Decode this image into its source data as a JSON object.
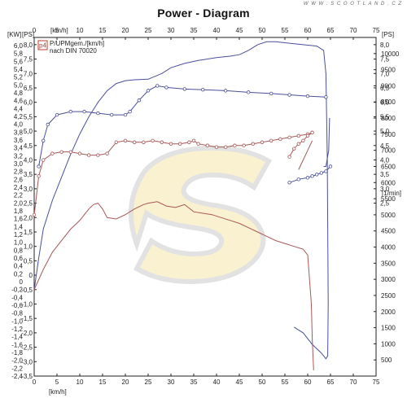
{
  "header": {
    "title": "Power - Diagram",
    "watermark": "W W W . S C O O T L A N D . C Z"
  },
  "chart_data": {
    "type": "line",
    "title": "Power - Diagram",
    "unit_labels": {
      "kw": "[KW]",
      "ps_left": "[PS]",
      "kmh_top": "[km/h]",
      "ps_right": "[PS]",
      "rpm_right": "[1/min]",
      "kmh_bottom": "[km/h]"
    },
    "legend": {
      "badge": "p4",
      "line1": "P/UPMgem./[km/h]",
      "line2": "nach DIN 70020"
    },
    "speed_ticks": [
      "0",
      "5",
      "10",
      "15",
      "20",
      "25",
      "30",
      "35",
      "40",
      "45",
      "50",
      "55",
      "60",
      "65",
      "70",
      "75"
    ],
    "kw_ticks": [
      "6,0",
      "5,8",
      "5,6",
      "5,4",
      "5,2",
      "5,0",
      "4,8",
      "4,6",
      "4,4",
      "4,2",
      "4,0",
      "3,8",
      "3,6",
      "3,4",
      "3,2",
      "3,0",
      "2,8",
      "2,6",
      "2,4",
      "2,2",
      "2,0",
      "1,8",
      "1,6",
      "1,4",
      "1,2",
      "1,0",
      "0,8",
      "0,6",
      "0,4",
      "0,2",
      "0",
      "-0,2",
      "-0,4",
      "-0,6",
      "-0,8",
      "-1,0",
      "-1,2",
      "-1,4",
      "-1,6",
      "-1,8",
      "-2,0",
      "-2,2",
      "-2,4"
    ],
    "ps_left_ticks": [
      "8,0",
      "7,5",
      "7,0",
      "6,5",
      "6,0",
      "5,5",
      "5,0",
      "4,5",
      "4,0",
      "3,5",
      "3,0",
      "2,5",
      "2,0",
      "1,5",
      "1,0",
      "0,5",
      "0",
      "-0,5",
      "-1,0",
      "-1,5",
      "-2,0",
      "-2,5",
      "-3,0",
      "-3,5"
    ],
    "ps_right_ticks": [
      "8,0",
      "7,5",
      "7,0",
      "6,5",
      "6,0",
      "5,5",
      "5,0",
      "4,5",
      "4,0",
      "3,5",
      "3,0",
      "2,5"
    ],
    "rpm_ticks": [
      "10000",
      "9500",
      "9000",
      "8500",
      "8000",
      "7500",
      "7000",
      "6500",
      "6000",
      "5500",
      "5000",
      "4500",
      "4000",
      "3500",
      "3000",
      "2500",
      "2000",
      "1500",
      "1000",
      "500"
    ],
    "x_range_kmh": [
      0,
      75
    ],
    "ps_range": [
      -3.5,
      8.25
    ],
    "rpm_range": [
      0,
      10500
    ],
    "grid": false,
    "series": [
      {
        "color": "#4a4f9a",
        "axis": "ps",
        "markers": false,
        "points": [
          [
            0,
            -0.5
          ],
          [
            1,
            0.6
          ],
          [
            2,
            1.6
          ],
          [
            4,
            2.6
          ],
          [
            6,
            3.4
          ],
          [
            8,
            4.2
          ],
          [
            10,
            4.9
          ],
          [
            12,
            5.5
          ],
          [
            14,
            6.0
          ],
          [
            16,
            6.4
          ],
          [
            18,
            6.65
          ],
          [
            20,
            6.75
          ],
          [
            22,
            6.78
          ],
          [
            25,
            6.8
          ],
          [
            28,
            7.0
          ],
          [
            30,
            7.2
          ],
          [
            33,
            7.35
          ],
          [
            36,
            7.45
          ],
          [
            40,
            7.55
          ],
          [
            43,
            7.6
          ],
          [
            45,
            7.65
          ],
          [
            47,
            7.8
          ],
          [
            49,
            8.0
          ],
          [
            51,
            8.1
          ],
          [
            53,
            8.1
          ],
          [
            56,
            8.05
          ],
          [
            59,
            8.0
          ],
          [
            62,
            7.95
          ],
          [
            63.5,
            7.8
          ],
          [
            64,
            7.0
          ],
          [
            64.3,
            4.0
          ],
          [
            64.5,
            -1.0
          ],
          [
            64.4,
            -2.8
          ],
          [
            64,
            -2.9
          ],
          [
            63,
            -2.7
          ],
          [
            61,
            -2.4
          ],
          [
            59,
            -2.0
          ],
          [
            57,
            -1.8
          ]
        ]
      },
      {
        "color": "#4a4f9a",
        "axis": "rpm",
        "markers": true,
        "points": [
          [
            1,
            6500
          ],
          [
            2,
            7300
          ],
          [
            3,
            7800
          ],
          [
            5,
            8100
          ],
          [
            8,
            8200
          ],
          [
            11,
            8200
          ],
          [
            14,
            8150
          ],
          [
            17,
            8100
          ],
          [
            20,
            8100
          ],
          [
            21,
            8200
          ],
          [
            23,
            8550
          ],
          [
            25,
            8850
          ],
          [
            27,
            9000
          ],
          [
            29,
            8950
          ],
          [
            33,
            8900
          ],
          [
            37,
            8880
          ],
          [
            42,
            8850
          ],
          [
            47,
            8800
          ],
          [
            52,
            8760
          ],
          [
            56,
            8720
          ],
          [
            60,
            8680
          ],
          [
            64,
            8650
          ]
        ]
      },
      {
        "color": "#4a4f9a",
        "axis": "rpm",
        "markers": true,
        "points": [
          [
            56,
            6000
          ],
          [
            58,
            6100
          ],
          [
            60,
            6150
          ],
          [
            61,
            6200
          ],
          [
            62,
            6250
          ],
          [
            63,
            6300
          ],
          [
            64,
            6350
          ],
          [
            65,
            6500
          ]
        ]
      },
      {
        "color": "#4a4f9a",
        "axis": "rpm",
        "markers": false,
        "points": [
          [
            63.5,
            6500
          ],
          [
            64,
            6500
          ],
          [
            64.6,
            7000
          ],
          [
            64.8,
            8000
          ]
        ]
      },
      {
        "color": "#a85858",
        "axis": "ps",
        "markers": false,
        "points": [
          [
            0,
            -0.5
          ],
          [
            2,
            0.2
          ],
          [
            4,
            0.8
          ],
          [
            6,
            1.2
          ],
          [
            8,
            1.6
          ],
          [
            10,
            1.9
          ],
          [
            11,
            2.1
          ],
          [
            12,
            2.3
          ],
          [
            13,
            2.45
          ],
          [
            14,
            2.5
          ],
          [
            15,
            2.3
          ],
          [
            16,
            2.0
          ],
          [
            18,
            1.95
          ],
          [
            20,
            2.1
          ],
          [
            22,
            2.3
          ],
          [
            24,
            2.45
          ],
          [
            25,
            2.5
          ],
          [
            27,
            2.55
          ],
          [
            29,
            2.4
          ],
          [
            31,
            2.35
          ],
          [
            33,
            2.45
          ],
          [
            35,
            2.2
          ],
          [
            37,
            2.15
          ],
          [
            39,
            2.1
          ],
          [
            41,
            2.0
          ],
          [
            43,
            1.9
          ],
          [
            45,
            1.8
          ],
          [
            47,
            1.65
          ],
          [
            49,
            1.5
          ],
          [
            51,
            1.35
          ],
          [
            53,
            1.2
          ],
          [
            55,
            1.1
          ],
          [
            57,
            1.0
          ],
          [
            59,
            0.9
          ],
          [
            60,
            0.7
          ],
          [
            60.8,
            -1.0
          ],
          [
            61,
            -2.2
          ],
          [
            61.3,
            -3.3
          ]
        ]
      },
      {
        "color": "#a85858",
        "axis": "rpm",
        "markers": true,
        "points": [
          [
            0,
            5000
          ],
          [
            1,
            6200
          ],
          [
            2,
            6700
          ],
          [
            4,
            6900
          ],
          [
            6,
            6950
          ],
          [
            8,
            6950
          ],
          [
            10,
            6900
          ],
          [
            12,
            6850
          ],
          [
            14,
            6850
          ],
          [
            16,
            6900
          ],
          [
            18,
            7250
          ],
          [
            20,
            7300
          ],
          [
            22,
            7250
          ],
          [
            24,
            7250
          ],
          [
            26,
            7300
          ],
          [
            28,
            7250
          ],
          [
            30,
            7200
          ],
          [
            32,
            7200
          ],
          [
            34,
            7250
          ],
          [
            35,
            7300
          ],
          [
            36,
            7200
          ],
          [
            38,
            7150
          ],
          [
            40,
            7100
          ],
          [
            42,
            7100
          ],
          [
            44,
            7150
          ],
          [
            46,
            7150
          ],
          [
            48,
            7200
          ],
          [
            50,
            7250
          ],
          [
            52,
            7300
          ],
          [
            54,
            7350
          ],
          [
            56,
            7400
          ],
          [
            58,
            7450
          ],
          [
            60,
            7500
          ],
          [
            61,
            7550
          ]
        ]
      },
      {
        "color": "#a85858",
        "axis": "rpm",
        "markers": true,
        "points": [
          [
            56,
            6800
          ],
          [
            57,
            7050
          ],
          [
            58,
            7200
          ],
          [
            59,
            7300
          ],
          [
            60,
            7450
          ],
          [
            61,
            7550
          ]
        ]
      },
      {
        "color": "#a85858",
        "axis": "rpm",
        "markers": false,
        "points": [
          [
            58,
            6400
          ],
          [
            59,
            6700
          ],
          [
            60,
            7000
          ],
          [
            61,
            7300
          ]
        ]
      }
    ]
  }
}
